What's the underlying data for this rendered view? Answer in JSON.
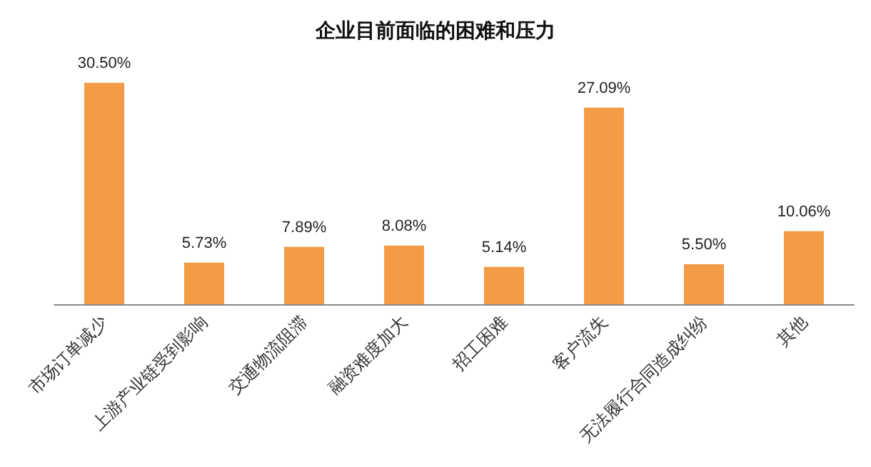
{
  "chart_data": {
    "type": "bar",
    "title": "企业目前面临的困难和压力",
    "categories": [
      "市场订单减少",
      "上游产业链受到影响",
      "交通物流阻滞",
      "融资难度加大",
      "招工困难",
      "客户流失",
      "无法履行合同造成纠纷",
      "其他"
    ],
    "values": [
      30.5,
      5.73,
      7.89,
      8.08,
      5.14,
      27.09,
      5.5,
      10.06
    ],
    "value_labels": [
      "30.50%",
      "5.73%",
      "7.89%",
      "8.08%",
      "5.14%",
      "27.09%",
      "5.50%",
      "10.06%"
    ],
    "color": "#f39b45",
    "grid": false,
    "tick_labels": "x"
  }
}
